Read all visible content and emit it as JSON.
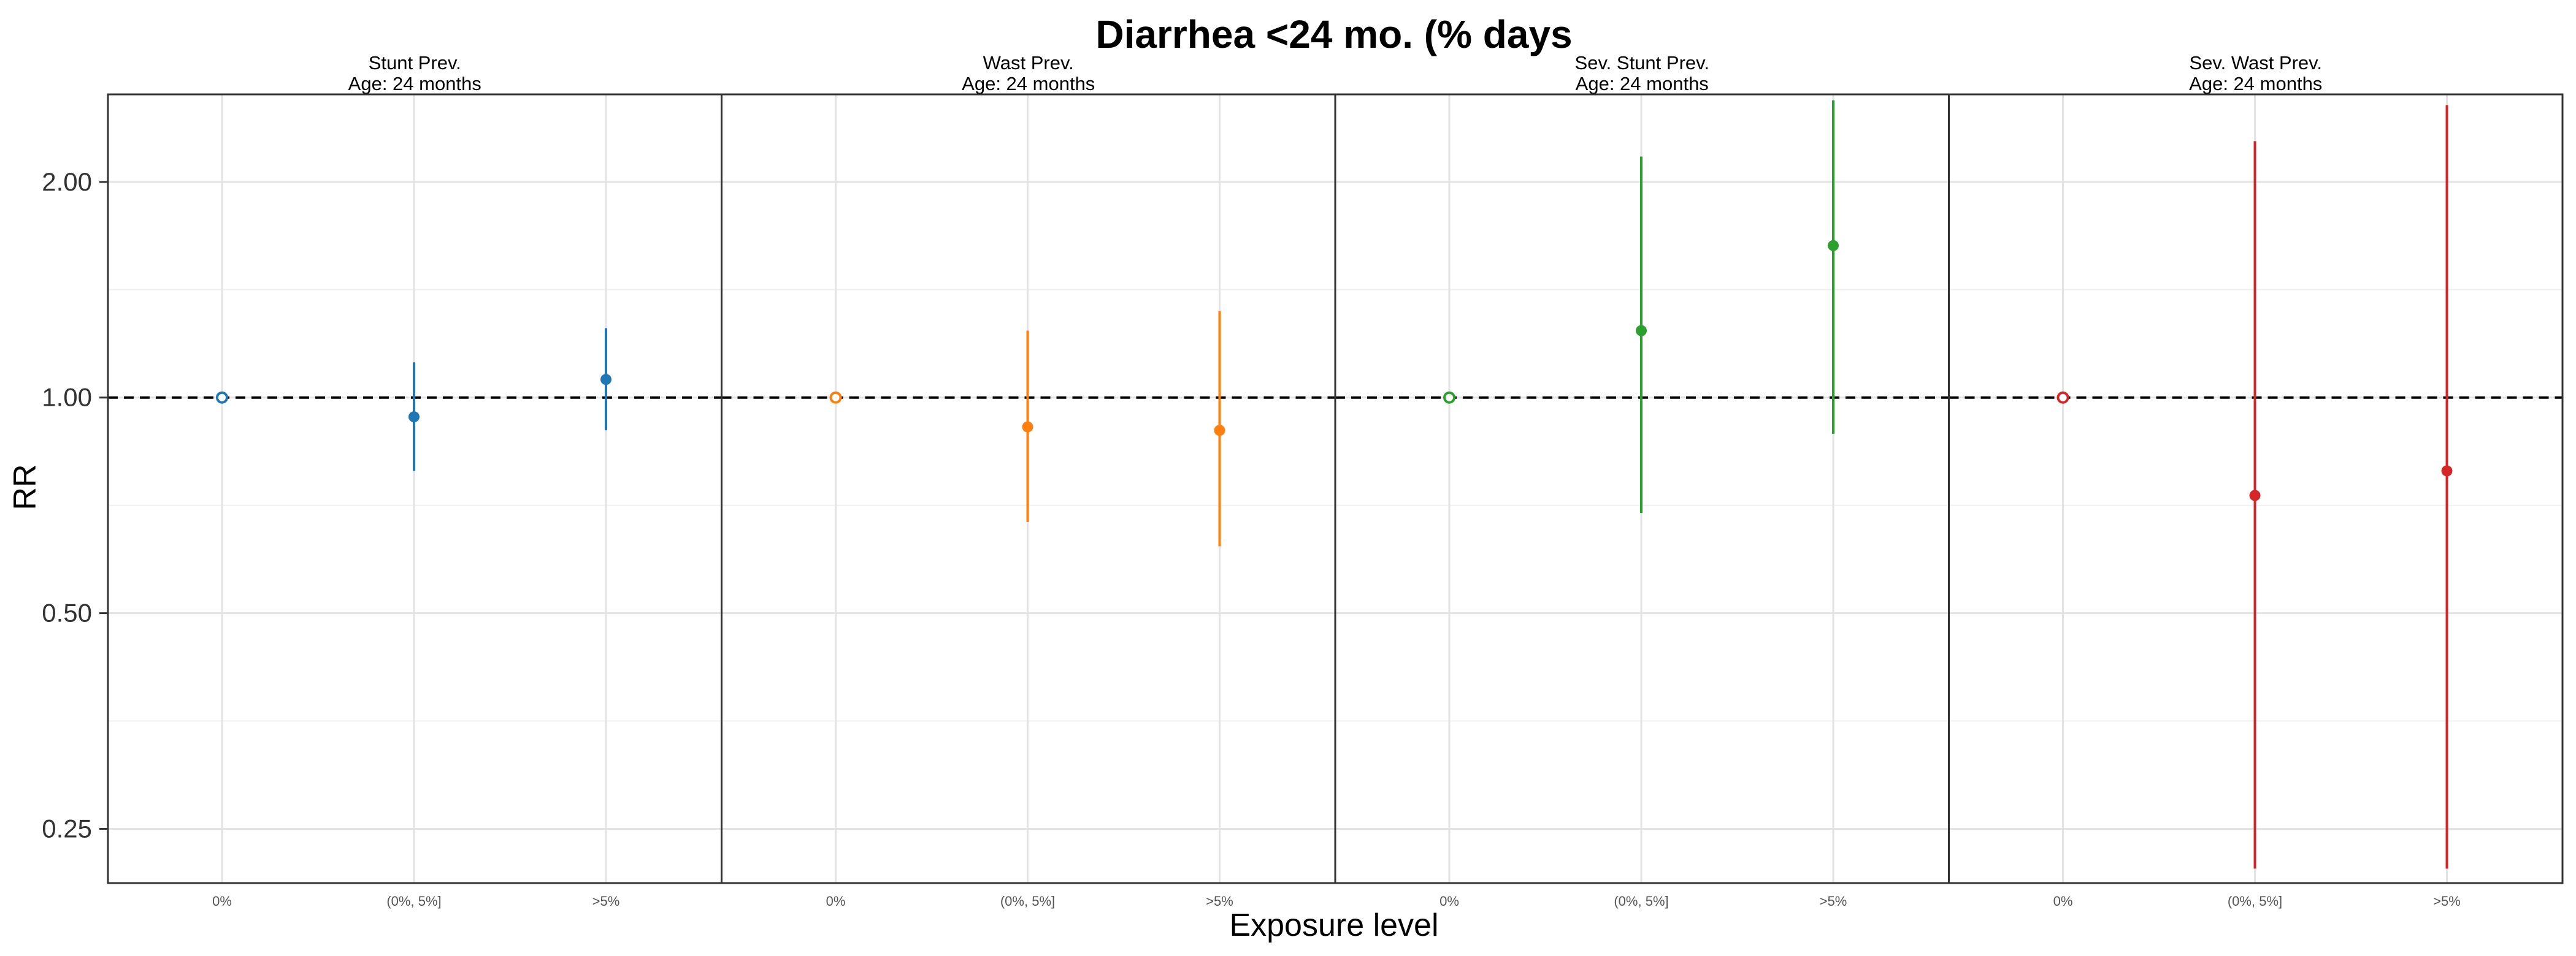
{
  "chart_data": {
    "type": "scatter",
    "title": "Diarrhea <24 mo.  (% days",
    "xlabel": "Exposure level",
    "ylabel": "RR",
    "y_scale": "log",
    "ylim": [
      0.21,
      2.65
    ],
    "y_ticks": [
      0.25,
      0.5,
      1.0,
      2.0
    ],
    "y_tick_labels": [
      "0.25",
      "0.50",
      "1.00",
      "2.00"
    ],
    "reference_line": 1.0,
    "categories": [
      "0%",
      "(0%, 5%]",
      ">5%"
    ],
    "panels": [
      {
        "title_line1": "Stunt Prev.",
        "title_line2": "Age: 24 months",
        "color": "#1f77b4",
        "points": [
          {
            "category": "0%",
            "rr": 1.0,
            "lower": 1.0,
            "upper": 1.0,
            "reference": true
          },
          {
            "category": "(0%, 5%]",
            "rr": 0.94,
            "lower": 0.79,
            "upper": 1.12,
            "reference": false
          },
          {
            "category": ">5%",
            "rr": 1.06,
            "lower": 0.9,
            "upper": 1.25,
            "reference": false
          }
        ]
      },
      {
        "title_line1": "Wast Prev.",
        "title_line2": "Age: 24 months",
        "color": "#ff7f0e",
        "points": [
          {
            "category": "0%",
            "rr": 1.0,
            "lower": 1.0,
            "upper": 1.0,
            "reference": true
          },
          {
            "category": "(0%, 5%]",
            "rr": 0.91,
            "lower": 0.67,
            "upper": 1.24,
            "reference": false
          },
          {
            "category": ">5%",
            "rr": 0.9,
            "lower": 0.62,
            "upper": 1.32,
            "reference": false
          }
        ]
      },
      {
        "title_line1": "Sev. Stunt Prev.",
        "title_line2": "Age: 24 months",
        "color": "#2ca02c",
        "points": [
          {
            "category": "0%",
            "rr": 1.0,
            "lower": 1.0,
            "upper": 1.0,
            "reference": true
          },
          {
            "category": "(0%, 5%]",
            "rr": 1.24,
            "lower": 0.69,
            "upper": 2.17,
            "reference": false
          },
          {
            "category": ">5%",
            "rr": 1.63,
            "lower": 0.89,
            "upper": 2.6,
            "reference": false
          }
        ]
      },
      {
        "title_line1": "Sev. Wast Prev.",
        "title_line2": "Age: 24 months",
        "color": "#d62728",
        "points": [
          {
            "category": "0%",
            "rr": 1.0,
            "lower": 1.0,
            "upper": 1.0,
            "reference": true
          },
          {
            "category": "(0%, 5%]",
            "rr": 0.73,
            "lower": 0.22,
            "upper": 2.28,
            "reference": false
          },
          {
            "category": ">5%",
            "rr": 0.79,
            "lower": 0.22,
            "upper": 2.56,
            "reference": false
          }
        ]
      }
    ]
  }
}
